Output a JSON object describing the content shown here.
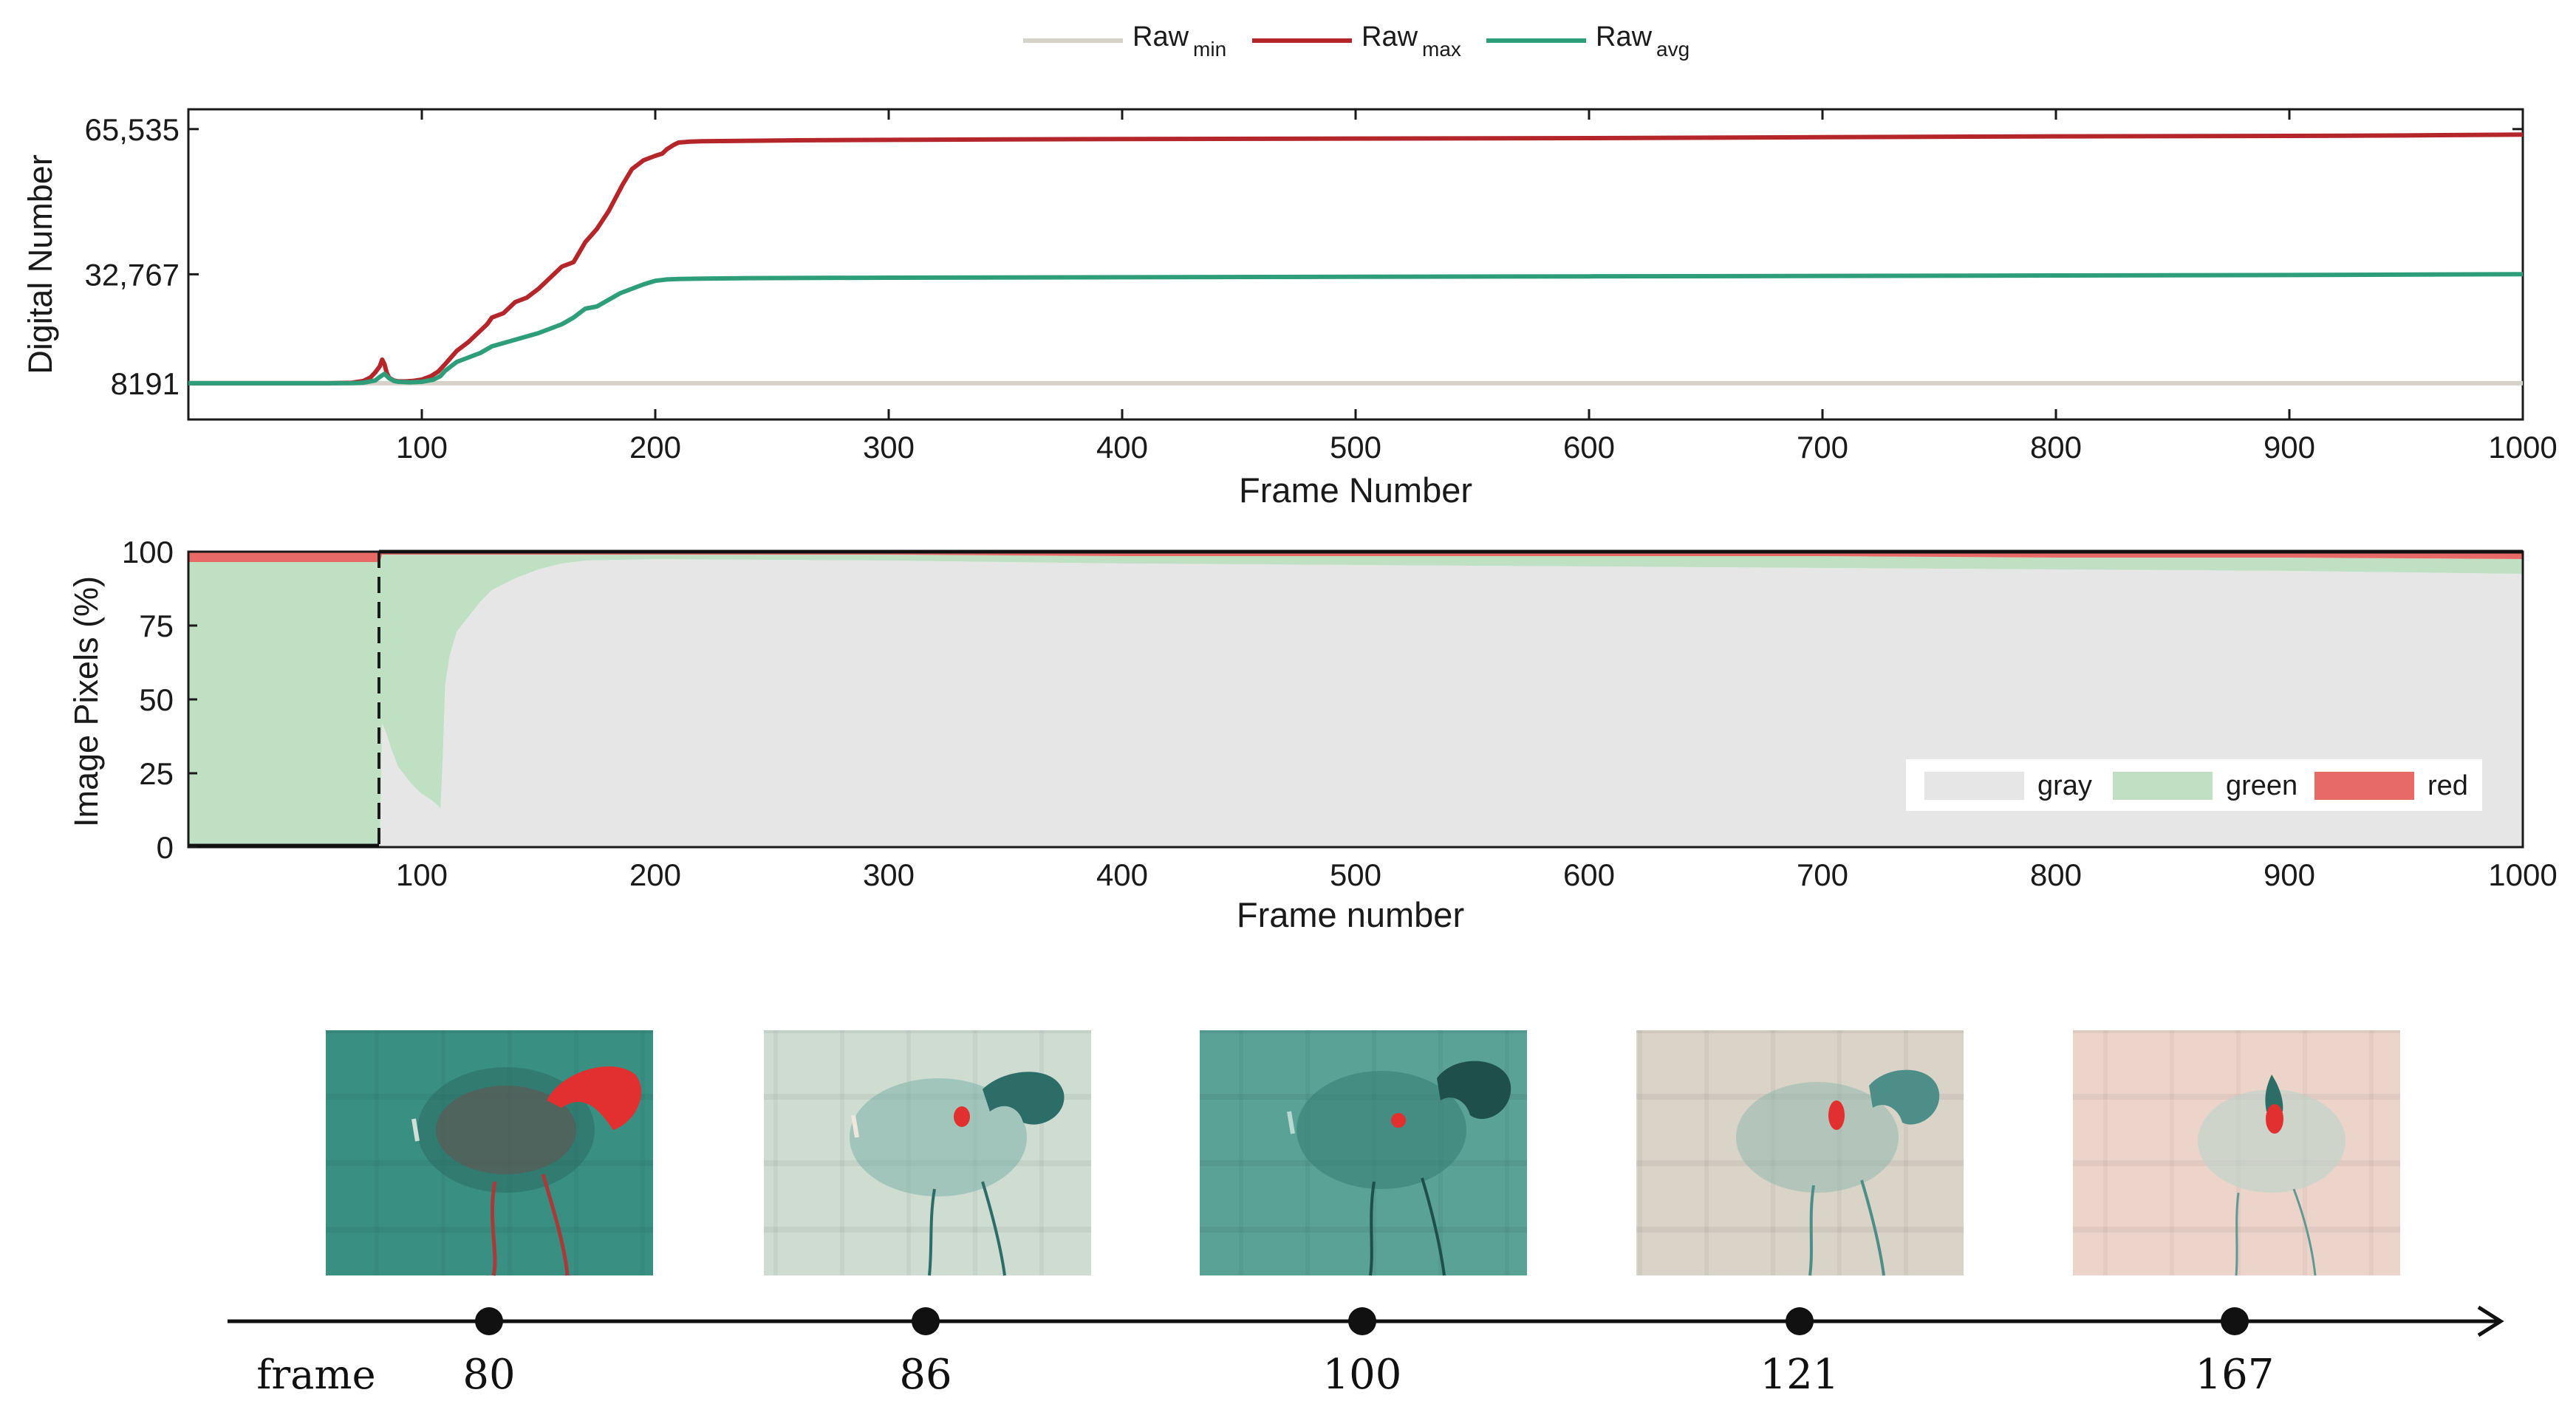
{
  "chart_data": [
    {
      "type": "line",
      "xlabel": "Frame Number",
      "ylabel": "Digital Number",
      "xlim": [
        0,
        1000
      ],
      "x_ticks": [
        100,
        200,
        300,
        400,
        500,
        600,
        700,
        800,
        900,
        1000
      ],
      "y_ticks": [
        8191,
        32767,
        65535
      ],
      "y_tick_labels": [
        "8191",
        "32,767",
        "65,535"
      ],
      "ylim": [
        0,
        70000
      ],
      "grid": false,
      "legend": {
        "placement": "top-center"
      },
      "series": [
        {
          "name": "Raw",
          "subscript": "min",
          "color": "#d6d1c9",
          "x": [
            0,
            1000
          ],
          "y": [
            8191,
            8191
          ]
        },
        {
          "name": "Raw",
          "subscript": "max",
          "color": "#b5262b",
          "x": [
            0,
            20,
            40,
            60,
            70,
            75,
            78,
            80,
            82,
            83,
            84,
            85,
            86,
            87,
            88,
            90,
            93,
            96,
            100,
            104,
            107,
            110,
            115,
            120,
            125,
            128,
            130,
            135,
            140,
            145,
            150,
            155,
            160,
            165,
            170,
            175,
            180,
            183,
            186,
            190,
            195,
            200,
            203,
            205,
            208,
            210,
            215,
            220,
            240,
            260,
            300,
            350,
            400,
            500,
            600,
            700,
            800,
            900,
            950,
            1000
          ],
          "y": [
            8191,
            8191,
            8191,
            8191,
            8300,
            8700,
            9500,
            10600,
            12000,
            13500,
            12500,
            10500,
            9400,
            9100,
            8800,
            8600,
            8600,
            8700,
            9000,
            9800,
            10800,
            12500,
            15500,
            17500,
            20000,
            21500,
            23000,
            24000,
            26500,
            27500,
            29500,
            32000,
            34500,
            35500,
            40000,
            43000,
            47000,
            50000,
            53000,
            56500,
            58500,
            59500,
            60000,
            61000,
            62000,
            62500,
            62700,
            62800,
            62900,
            63000,
            63100,
            63200,
            63300,
            63400,
            63500,
            63700,
            63900,
            64000,
            64100,
            64300
          ]
        },
        {
          "name": "Raw",
          "subscript": "avg",
          "color": "#2e9e7a",
          "x": [
            0,
            20,
            40,
            60,
            70,
            75,
            80,
            82,
            84,
            86,
            88,
            90,
            95,
            100,
            105,
            108,
            110,
            115,
            120,
            125,
            130,
            140,
            150,
            160,
            165,
            170,
            175,
            180,
            185,
            190,
            195,
            200,
            205,
            210,
            220,
            240,
            300,
            400,
            500,
            600,
            700,
            800,
            900,
            1000
          ],
          "y": [
            8191,
            8191,
            8191,
            8191,
            8200,
            8300,
            8800,
            9600,
            10300,
            9300,
            8700,
            8500,
            8400,
            8500,
            9000,
            9800,
            11000,
            13000,
            14000,
            15000,
            16500,
            18000,
            19500,
            21500,
            23000,
            25000,
            25500,
            27000,
            28500,
            29500,
            30500,
            31300,
            31600,
            31700,
            31800,
            31900,
            32000,
            32100,
            32200,
            32300,
            32400,
            32500,
            32600,
            32800
          ]
        }
      ]
    },
    {
      "type": "area",
      "xlabel": "Frame number",
      "ylabel": "Image Pixels (%)",
      "xlim": [
        0,
        1000
      ],
      "ylim": [
        0,
        100
      ],
      "x_ticks": [
        100,
        200,
        300,
        400,
        500,
        600,
        700,
        800,
        900,
        1000
      ],
      "y_ticks": [
        0,
        25,
        50,
        75,
        100
      ],
      "grid": false,
      "legend": {
        "placement": "bottom-right"
      },
      "x": [
        0,
        82,
        83,
        85,
        87,
        90,
        93,
        96,
        100,
        104,
        107,
        108,
        109,
        110,
        112,
        115,
        120,
        125,
        130,
        140,
        150,
        160,
        170,
        200,
        300,
        400,
        500,
        600,
        700,
        800,
        900,
        1000
      ],
      "series": [
        {
          "name": "gray",
          "color": "#e6e6e6",
          "values": [
            0,
            0,
            42,
            38,
            33,
            27,
            24,
            21,
            18,
            16,
            14,
            13,
            30,
            55,
            65,
            73,
            78,
            83,
            87,
            91,
            94,
            96,
            97,
            97.5,
            97,
            96,
            95.5,
            95,
            94.5,
            94,
            93.5,
            92.5
          ]
        },
        {
          "name": "green",
          "color": "#c0e0c4",
          "values": [
            96.5,
            96.5,
            57,
            61,
            66,
            72,
            75,
            78,
            81,
            83,
            85,
            86,
            69,
            44,
            34,
            26,
            21,
            16,
            12,
            8,
            5,
            3,
            2,
            1.5,
            2,
            2.5,
            3,
            3.5,
            4,
            4,
            4.5,
            5
          ]
        },
        {
          "name": "red",
          "color": "#e86a66",
          "values": [
            3.5,
            3.5,
            1,
            1,
            1,
            1,
            1,
            1,
            1,
            1,
            1,
            1,
            1,
            1,
            1,
            1,
            1,
            1,
            1,
            1,
            1,
            1,
            1,
            1,
            1,
            1.5,
            1.5,
            1.5,
            1.5,
            2,
            2,
            2.5
          ]
        }
      ]
    }
  ],
  "timeline": {
    "label": "frame",
    "frames": [
      "80",
      "86",
      "100",
      "121",
      "167"
    ]
  }
}
